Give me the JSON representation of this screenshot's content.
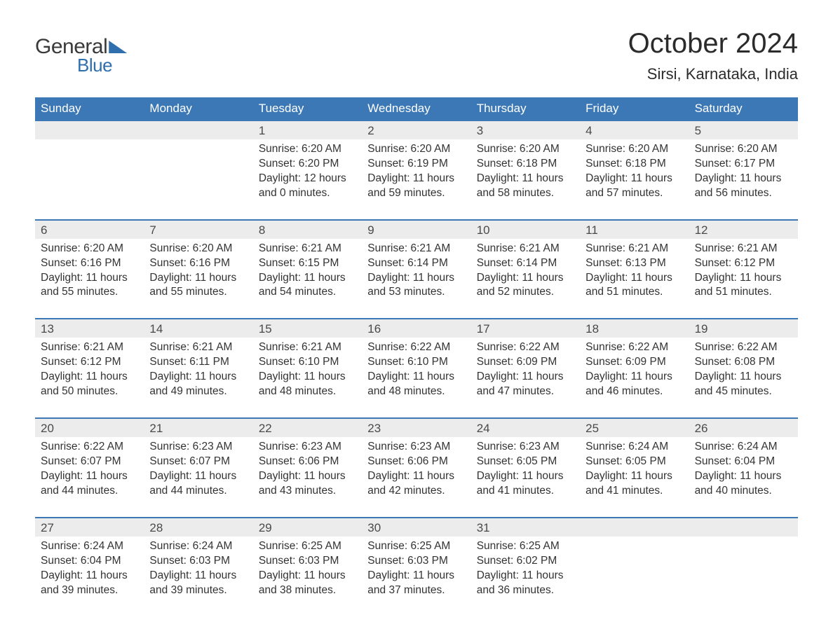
{
  "brand": {
    "text1": "General",
    "text2": "Blue",
    "accent_color": "#2f6fad",
    "text1_color": "#3a3a3a"
  },
  "title": "October 2024",
  "location": "Sirsi, Karnataka, India",
  "header_bg": "#3b78b5",
  "header_fg": "#ffffff",
  "daynum_bg": "#ececec",
  "border_color": "#3b78b5",
  "body_bg": "#ffffff",
  "text_color": "#333333",
  "fonts": {
    "title_pt": 40,
    "location_pt": 22,
    "dow_pt": 17,
    "daynum_pt": 17,
    "cell_pt": 15.5
  },
  "days_of_week": [
    "Sunday",
    "Monday",
    "Tuesday",
    "Wednesday",
    "Thursday",
    "Friday",
    "Saturday"
  ],
  "weeks": [
    [
      null,
      null,
      {
        "n": "1",
        "sunrise": "6:20 AM",
        "sunset": "6:20 PM",
        "daylight": "12 hours and 0 minutes."
      },
      {
        "n": "2",
        "sunrise": "6:20 AM",
        "sunset": "6:19 PM",
        "daylight": "11 hours and 59 minutes."
      },
      {
        "n": "3",
        "sunrise": "6:20 AM",
        "sunset": "6:18 PM",
        "daylight": "11 hours and 58 minutes."
      },
      {
        "n": "4",
        "sunrise": "6:20 AM",
        "sunset": "6:18 PM",
        "daylight": "11 hours and 57 minutes."
      },
      {
        "n": "5",
        "sunrise": "6:20 AM",
        "sunset": "6:17 PM",
        "daylight": "11 hours and 56 minutes."
      }
    ],
    [
      {
        "n": "6",
        "sunrise": "6:20 AM",
        "sunset": "6:16 PM",
        "daylight": "11 hours and 55 minutes."
      },
      {
        "n": "7",
        "sunrise": "6:20 AM",
        "sunset": "6:16 PM",
        "daylight": "11 hours and 55 minutes."
      },
      {
        "n": "8",
        "sunrise": "6:21 AM",
        "sunset": "6:15 PM",
        "daylight": "11 hours and 54 minutes."
      },
      {
        "n": "9",
        "sunrise": "6:21 AM",
        "sunset": "6:14 PM",
        "daylight": "11 hours and 53 minutes."
      },
      {
        "n": "10",
        "sunrise": "6:21 AM",
        "sunset": "6:14 PM",
        "daylight": "11 hours and 52 minutes."
      },
      {
        "n": "11",
        "sunrise": "6:21 AM",
        "sunset": "6:13 PM",
        "daylight": "11 hours and 51 minutes."
      },
      {
        "n": "12",
        "sunrise": "6:21 AM",
        "sunset": "6:12 PM",
        "daylight": "11 hours and 51 minutes."
      }
    ],
    [
      {
        "n": "13",
        "sunrise": "6:21 AM",
        "sunset": "6:12 PM",
        "daylight": "11 hours and 50 minutes."
      },
      {
        "n": "14",
        "sunrise": "6:21 AM",
        "sunset": "6:11 PM",
        "daylight": "11 hours and 49 minutes."
      },
      {
        "n": "15",
        "sunrise": "6:21 AM",
        "sunset": "6:10 PM",
        "daylight": "11 hours and 48 minutes."
      },
      {
        "n": "16",
        "sunrise": "6:22 AM",
        "sunset": "6:10 PM",
        "daylight": "11 hours and 48 minutes."
      },
      {
        "n": "17",
        "sunrise": "6:22 AM",
        "sunset": "6:09 PM",
        "daylight": "11 hours and 47 minutes."
      },
      {
        "n": "18",
        "sunrise": "6:22 AM",
        "sunset": "6:09 PM",
        "daylight": "11 hours and 46 minutes."
      },
      {
        "n": "19",
        "sunrise": "6:22 AM",
        "sunset": "6:08 PM",
        "daylight": "11 hours and 45 minutes."
      }
    ],
    [
      {
        "n": "20",
        "sunrise": "6:22 AM",
        "sunset": "6:07 PM",
        "daylight": "11 hours and 44 minutes."
      },
      {
        "n": "21",
        "sunrise": "6:23 AM",
        "sunset": "6:07 PM",
        "daylight": "11 hours and 44 minutes."
      },
      {
        "n": "22",
        "sunrise": "6:23 AM",
        "sunset": "6:06 PM",
        "daylight": "11 hours and 43 minutes."
      },
      {
        "n": "23",
        "sunrise": "6:23 AM",
        "sunset": "6:06 PM",
        "daylight": "11 hours and 42 minutes."
      },
      {
        "n": "24",
        "sunrise": "6:23 AM",
        "sunset": "6:05 PM",
        "daylight": "11 hours and 41 minutes."
      },
      {
        "n": "25",
        "sunrise": "6:24 AM",
        "sunset": "6:05 PM",
        "daylight": "11 hours and 41 minutes."
      },
      {
        "n": "26",
        "sunrise": "6:24 AM",
        "sunset": "6:04 PM",
        "daylight": "11 hours and 40 minutes."
      }
    ],
    [
      {
        "n": "27",
        "sunrise": "6:24 AM",
        "sunset": "6:04 PM",
        "daylight": "11 hours and 39 minutes."
      },
      {
        "n": "28",
        "sunrise": "6:24 AM",
        "sunset": "6:03 PM",
        "daylight": "11 hours and 39 minutes."
      },
      {
        "n": "29",
        "sunrise": "6:25 AM",
        "sunset": "6:03 PM",
        "daylight": "11 hours and 38 minutes."
      },
      {
        "n": "30",
        "sunrise": "6:25 AM",
        "sunset": "6:03 PM",
        "daylight": "11 hours and 37 minutes."
      },
      {
        "n": "31",
        "sunrise": "6:25 AM",
        "sunset": "6:02 PM",
        "daylight": "11 hours and 36 minutes."
      },
      null,
      null
    ]
  ],
  "labels": {
    "sunrise": "Sunrise:",
    "sunset": "Sunset:",
    "daylight": "Daylight:"
  }
}
